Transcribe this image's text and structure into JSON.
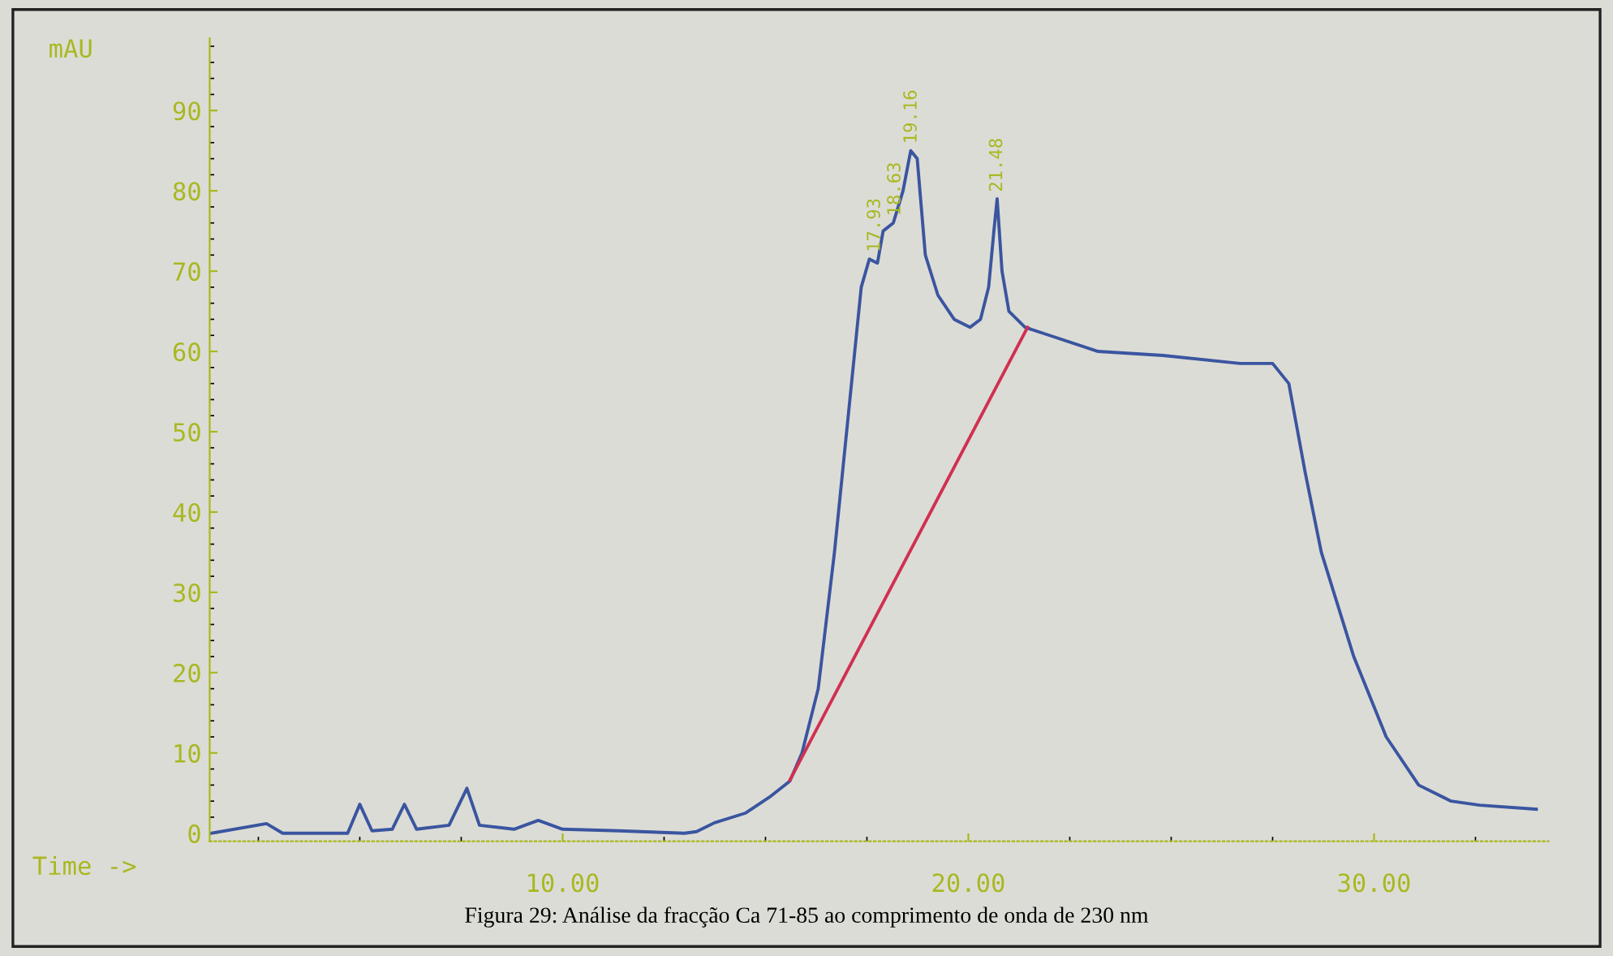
{
  "chart_data": {
    "type": "line",
    "title": "Figura 29: Análise da fracção Ca 71-85 ao comprimento de onda de 230 nm",
    "xlabel": "Time ->",
    "ylabel": "mAU",
    "xlim": [
      1.3,
      34.3
    ],
    "ylim": [
      -1,
      99
    ],
    "xticks": [
      {
        "value": 10,
        "label": "10.00"
      },
      {
        "value": 20,
        "label": "20.00"
      },
      {
        "value": 30,
        "label": "30.00"
      }
    ],
    "yticks": [
      0,
      10,
      20,
      30,
      40,
      50,
      60,
      70,
      80,
      90
    ],
    "grid": false,
    "marker": "none",
    "line_style": "solid",
    "series": [
      {
        "color": "#3a55a0",
        "x": [
          1.34,
          2.7,
          3.1,
          4.7,
          5.0,
          5.3,
          5.8,
          6.1,
          6.4,
          7.2,
          7.64,
          7.95,
          8.8,
          9.4,
          10.0,
          11.4,
          13.0,
          13.3,
          13.74,
          14.5,
          15.1,
          15.6,
          15.9,
          16.3,
          16.7,
          17.1,
          17.36,
          17.56,
          17.76,
          17.9,
          18.15,
          18.39,
          18.58,
          18.74,
          18.94,
          19.25,
          19.65,
          20.04,
          20.3,
          20.5,
          20.63,
          20.71,
          20.83,
          21.0,
          21.4,
          22.0,
          23.2,
          24.8,
          26.7,
          27.5,
          27.9,
          28.3,
          28.7,
          29.5,
          30.3,
          31.1,
          31.9,
          32.6,
          34.0
        ],
        "values": [
          0,
          1.2,
          0,
          0,
          3.6,
          0.3,
          0.5,
          3.6,
          0.5,
          1,
          5.6,
          1,
          0.5,
          1.6,
          0.5,
          0.3,
          0,
          0.2,
          1.3,
          2.5,
          4.5,
          6.5,
          10,
          18,
          35,
          55,
          68,
          71.5,
          71,
          75,
          76,
          80,
          85,
          84,
          72,
          67,
          64,
          63,
          64,
          68,
          75,
          79,
          70,
          65,
          63,
          62,
          60,
          59.5,
          58.5,
          58.5,
          56,
          45,
          35,
          22,
          12,
          6,
          4,
          3.5,
          3
        ]
      },
      {
        "color": "#d03050",
        "x": [
          15.6,
          21.46
        ],
        "values": [
          6.6,
          63
        ]
      }
    ],
    "annotations": [
      {
        "text": "17.93",
        "x": 17.7,
        "y": 71.5
      },
      {
        "text": "18.63",
        "x": 18.2,
        "y": 76
      },
      {
        "text": "19.16",
        "x": 18.6,
        "y": 85
      },
      {
        "text": "21.48",
        "x": 20.71,
        "y": 79
      }
    ]
  }
}
